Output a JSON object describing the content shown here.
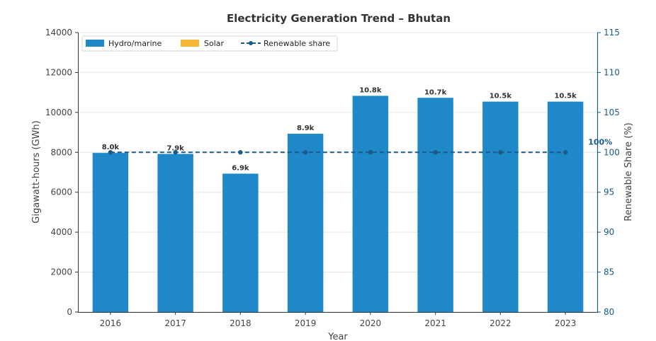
{
  "chart_data": {
    "type": "bar",
    "title": "Electricity Generation Trend – Bhutan",
    "xlabel": "Year",
    "ylabel": "Gigawatt-hours (GWh)",
    "y2label": "Renewable Share (%)",
    "categories": [
      "2016",
      "2017",
      "2018",
      "2019",
      "2020",
      "2021",
      "2022",
      "2023"
    ],
    "ylim": [
      0,
      14000
    ],
    "yticks": [
      0,
      2000,
      4000,
      6000,
      8000,
      10000,
      12000,
      14000
    ],
    "y2lim": [
      80,
      115
    ],
    "y2ticks": [
      80,
      85,
      90,
      95,
      100,
      105,
      110,
      115
    ],
    "series": [
      {
        "name": "Hydro/marine",
        "type": "bar",
        "color": "#1f88c9",
        "values": [
          7970,
          7920,
          6930,
          8930,
          10830,
          10730,
          10540,
          10540
        ]
      },
      {
        "name": "Solar",
        "type": "bar",
        "color": "#f5b731",
        "values": [
          0,
          0,
          0,
          0,
          0,
          0,
          0,
          0
        ]
      },
      {
        "name": "Renewable share",
        "type": "line",
        "axis": "right",
        "color": "#1a5a86",
        "values": [
          100,
          100,
          100,
          100,
          100,
          100,
          100,
          100
        ]
      }
    ],
    "bar_labels": [
      "8.0k",
      "7.9k",
      "6.9k",
      "8.9k",
      "10.8k",
      "10.7k",
      "10.5k",
      "10.5k"
    ],
    "annotation": "100%",
    "grid": "horizontal",
    "legend_position": "top-left",
    "right_axis_color": "#1a5a86"
  }
}
